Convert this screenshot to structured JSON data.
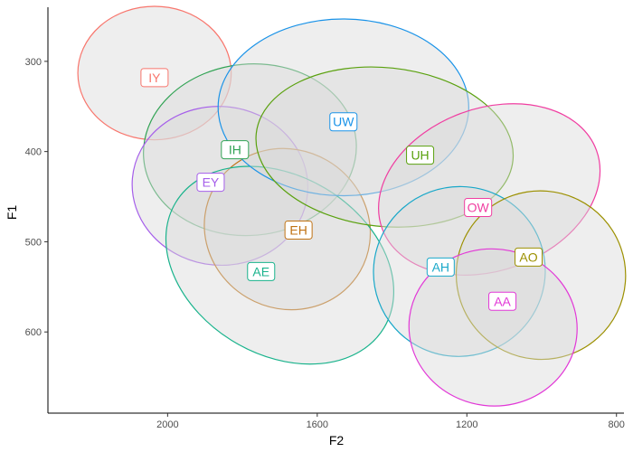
{
  "chart_data": {
    "type": "scatter",
    "title": "",
    "xlabel": "F2",
    "ylabel": "F1",
    "x_reversed": true,
    "y_reversed": true,
    "xlim": [
      2320,
      780
    ],
    "ylim": [
      240,
      690
    ],
    "x_ticks": [
      2000,
      1600,
      1200,
      800
    ],
    "y_ticks": [
      300,
      400,
      500,
      600
    ],
    "grid": false,
    "legend": "none",
    "ellipse_fill": "#d9d9d9",
    "series": [
      {
        "name": "IY",
        "color": "#f8766d",
        "label": [
          2035,
          318
        ],
        "ellipse": {
          "cx": 2035,
          "cy": 313,
          "rx": 205,
          "ry": 74,
          "angle": 0
        }
      },
      {
        "name": "IH",
        "color": "#31a354",
        "label": [
          1820,
          398
        ],
        "ellipse": {
          "cx": 1780,
          "cy": 398,
          "rx": 285,
          "ry": 95,
          "angle": -5
        }
      },
      {
        "name": "EY",
        "color": "#a55eea",
        "label": [
          1885,
          434
        ],
        "ellipse": {
          "cx": 1860,
          "cy": 438,
          "rx": 235,
          "ry": 88,
          "angle": 5
        }
      },
      {
        "name": "EH",
        "color": "#c07213",
        "label": [
          1650,
          487
        ],
        "ellipse": {
          "cx": 1680,
          "cy": 486,
          "rx": 225,
          "ry": 88,
          "angle": 30
        }
      },
      {
        "name": "AE",
        "color": "#19b38c",
        "label": [
          1750,
          533
        ],
        "ellipse": {
          "cx": 1700,
          "cy": 526,
          "rx": 325,
          "ry": 99,
          "angle": 31
        }
      },
      {
        "name": "UW",
        "color": "#1a93e8",
        "label": [
          1530,
          367
        ],
        "ellipse": {
          "cx": 1530,
          "cy": 351,
          "rx": 335,
          "ry": 98,
          "angle": 0
        }
      },
      {
        "name": "UH",
        "color": "#5aa10e",
        "label": [
          1325,
          404
        ],
        "ellipse": {
          "cx": 1420,
          "cy": 395,
          "rx": 345,
          "ry": 88,
          "angle": 6
        }
      },
      {
        "name": "OW",
        "color": "#f03ea1",
        "label": [
          1170,
          462
        ],
        "ellipse": {
          "cx": 1140,
          "cy": 442,
          "rx": 305,
          "ry": 90,
          "angle": -20
        }
      },
      {
        "name": "AH",
        "color": "#1aa8c9",
        "label": [
          1270,
          528
        ],
        "ellipse": {
          "cx": 1220,
          "cy": 533,
          "rx": 230,
          "ry": 94,
          "angle": -20
        }
      },
      {
        "name": "AO",
        "color": "#9c9000",
        "label": [
          1035,
          517
        ],
        "ellipse": {
          "cx": 1002,
          "cy": 537,
          "rx": 225,
          "ry": 94,
          "angle": -64
        }
      },
      {
        "name": "AA",
        "color": "#e238d7",
        "label": [
          1105,
          566
        ],
        "ellipse": {
          "cx": 1130,
          "cy": 595,
          "rx": 225,
          "ry": 87,
          "angle": 7
        }
      }
    ]
  }
}
